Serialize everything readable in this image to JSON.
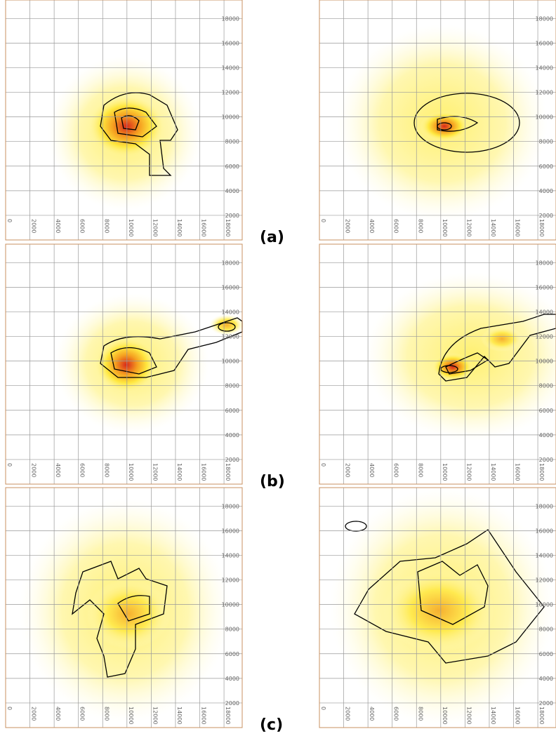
{
  "chart_data": [
    {
      "type": "contour",
      "xlim": [
        0,
        19500
      ],
      "ylim": [
        0,
        19500
      ],
      "xticks": [
        0,
        2000,
        4000,
        6000,
        8000,
        10000,
        12000,
        14000,
        16000,
        18000
      ],
      "yticks": [
        2000,
        4000,
        6000,
        8000,
        10000,
        12000,
        14000,
        16000,
        18000
      ],
      "grid": true
    },
    {
      "type": "contour",
      "xlim": [
        0,
        19500
      ],
      "ylim": [
        0,
        19500
      ],
      "xticks": [
        0,
        2000,
        4000,
        6000,
        8000,
        10000,
        12000,
        14000,
        16000,
        18000
      ],
      "yticks": [
        2000,
        4000,
        6000,
        8000,
        10000,
        12000,
        14000,
        16000,
        18000
      ],
      "grid": true
    },
    {
      "type": "contour",
      "xlim": [
        0,
        19500
      ],
      "ylim": [
        0,
        19500
      ],
      "xticks": [
        0,
        2000,
        4000,
        6000,
        8000,
        10000,
        12000,
        14000,
        16000,
        18000
      ],
      "yticks": [
        2000,
        4000,
        6000,
        8000,
        10000,
        12000,
        14000,
        16000,
        18000
      ],
      "grid": true
    },
    {
      "type": "contour",
      "xlim": [
        0,
        19500
      ],
      "ylim": [
        0,
        19500
      ],
      "xticks": [
        0,
        2000,
        4000,
        6000,
        8000,
        10000,
        12000,
        14000,
        16000,
        18000
      ],
      "yticks": [
        2000,
        4000,
        6000,
        8000,
        10000,
        12000,
        14000,
        16000,
        18000
      ],
      "grid": true
    },
    {
      "type": "contour",
      "xlim": [
        0,
        19500
      ],
      "ylim": [
        0,
        19500
      ],
      "xticks": [
        0,
        2000,
        4000,
        6000,
        8000,
        10000,
        12000,
        14000,
        16000,
        18000
      ],
      "yticks": [
        2000,
        4000,
        6000,
        8000,
        10000,
        12000,
        14000,
        16000,
        18000
      ],
      "grid": true
    },
    {
      "type": "contour",
      "xlim": [
        0,
        19500
      ],
      "ylim": [
        0,
        19500
      ],
      "xticks": [
        0,
        2000,
        4000,
        6000,
        8000,
        10000,
        12000,
        14000,
        16000,
        18000
      ],
      "yticks": [
        2000,
        4000,
        6000,
        8000,
        10000,
        12000,
        14000,
        16000,
        18000
      ],
      "grid": true
    }
  ],
  "panel_labels": [
    "(a)",
    "(b)",
    "(c)"
  ]
}
